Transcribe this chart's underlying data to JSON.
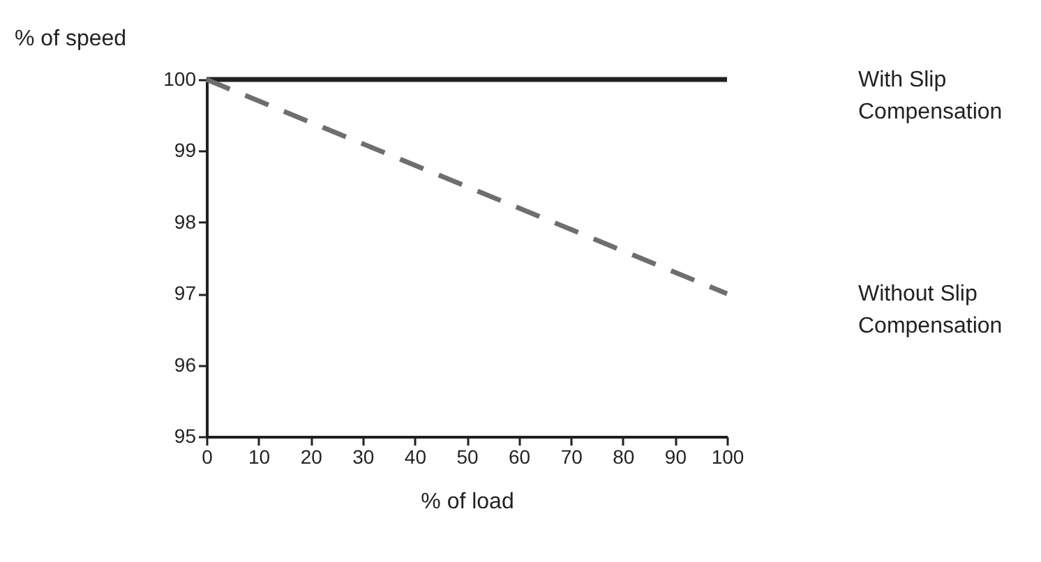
{
  "chart_data": {
    "type": "line",
    "xlabel": "% of load",
    "ylabel": "% of speed",
    "x": [
      0,
      100
    ],
    "series": [
      {
        "name": "With Slip Compensation",
        "color": "#231f20",
        "line_style": "solid",
        "values": [
          100,
          100
        ]
      },
      {
        "name": "Without Slip Compensation",
        "color": "#6d6e71",
        "line_style": "dashed",
        "values": [
          100,
          97
        ]
      }
    ],
    "xlim": [
      0,
      100
    ],
    "xticks": [
      0,
      10,
      20,
      30,
      40,
      50,
      60,
      70,
      80,
      90,
      100
    ],
    "ylim": [
      95,
      100
    ],
    "yticks": [
      95,
      96,
      97,
      98,
      99,
      100
    ],
    "grid": false,
    "legend": false,
    "marker": "none"
  }
}
